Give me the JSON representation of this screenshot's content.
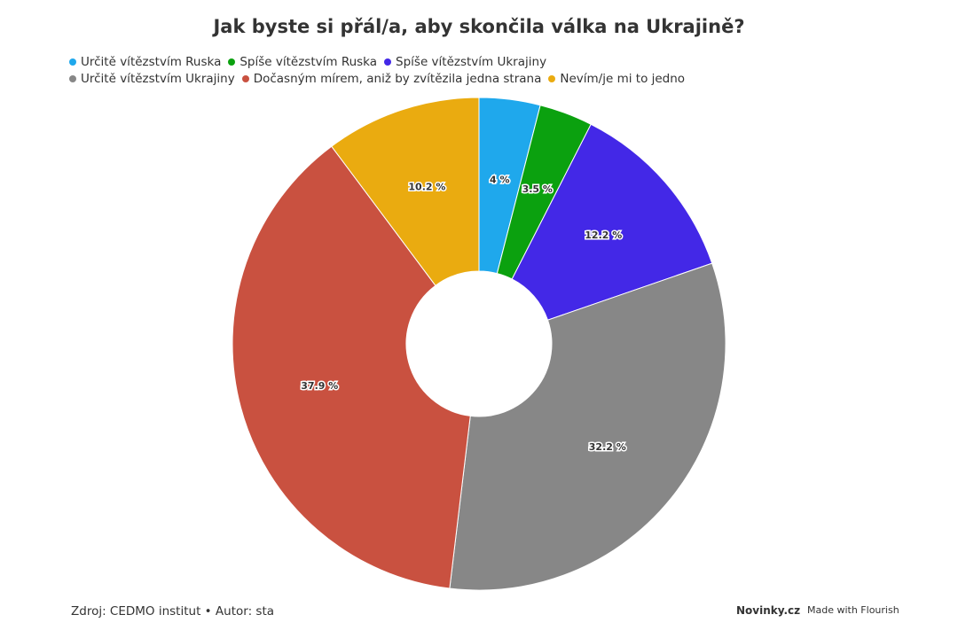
{
  "chart_data": {
    "type": "pie",
    "title": "Jak byste si přál/a, aby skončila válka na Ukrajině?",
    "categories": [
      "Určitě vítězstvím Ruska",
      "Spíše vítězstvím Ruska",
      "Spíše vítězstvím Ukrajiny",
      "Určitě vítězstvím Ukrajiny",
      "Dočasným mírem, aniž by zvítězila jedna strana",
      "Nevím/je mi to jedno"
    ],
    "values": [
      4,
      3.5,
      12.2,
      32.2,
      37.9,
      10.2
    ],
    "value_labels": [
      "4 %",
      "3.5 %",
      "12.2 %",
      "32.2 %",
      "37.9 %",
      "10.2 %"
    ],
    "colors": [
      "#1fa8ec",
      "#0ba10f",
      "#4328e7",
      "#878787",
      "#c95140",
      "#eaab10"
    ],
    "legend": "top-left",
    "source": "Zdroj: CEDMO institut • Autor: sta",
    "publisher": "Novinky.cz",
    "credit": "Made with Flourish"
  }
}
